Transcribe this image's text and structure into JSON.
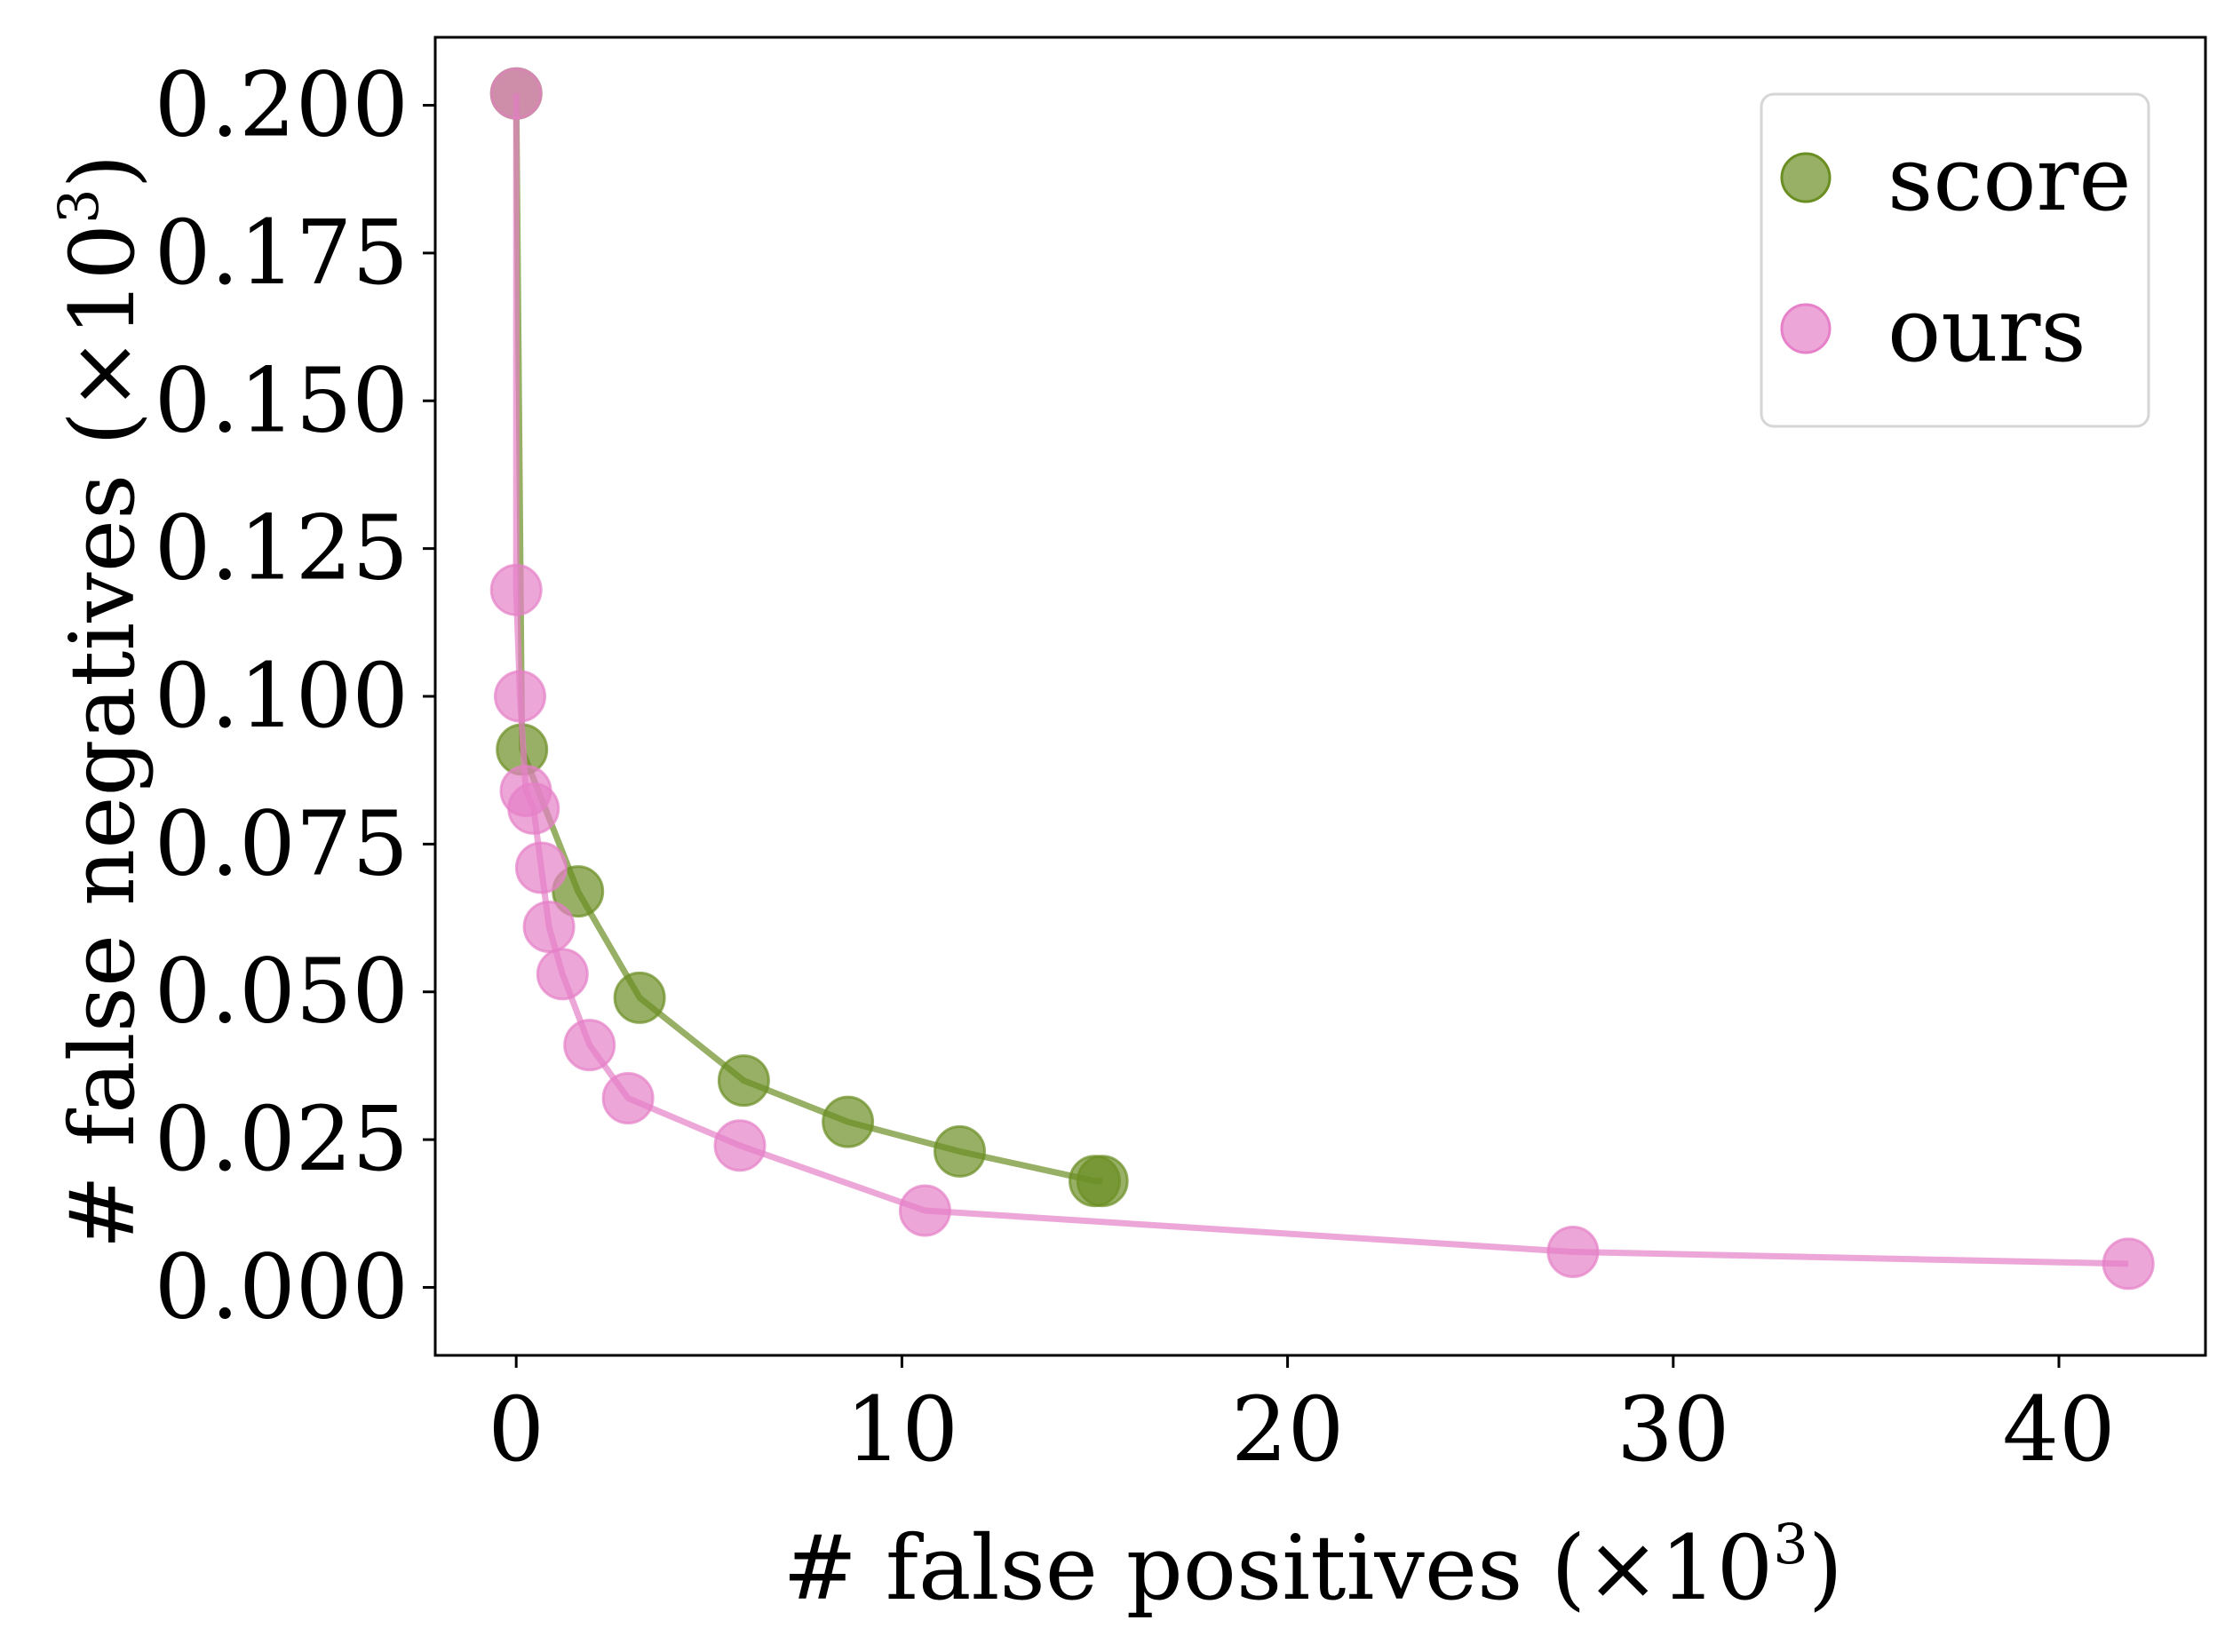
{
  "chart_data": {
    "type": "line",
    "title": "",
    "xlabel": {
      "text": "# false positives (×10",
      "sup": "3",
      "close": ")"
    },
    "ylabel": {
      "text": "# false negatives (×10",
      "sup": "3",
      "close": ")"
    },
    "xlim": [
      -2.1,
      43.8
    ],
    "ylim": [
      -0.0115,
      0.2115
    ],
    "xticks": [
      0,
      10,
      20,
      30,
      40
    ],
    "xtick_labels": [
      "0",
      "10",
      "20",
      "30",
      "40"
    ],
    "yticks": [
      0.0,
      0.025,
      0.05,
      0.075,
      0.1,
      0.125,
      0.15,
      0.175,
      0.2
    ],
    "ytick_labels": [
      "0.000",
      "0.025",
      "0.050",
      "0.075",
      "0.100",
      "0.125",
      "0.150",
      "0.175",
      "0.200"
    ],
    "grid": false,
    "legend_position": "top-right",
    "series": [
      {
        "name": "score",
        "color": "#6b8e23",
        "x": [
          0.0,
          0.15,
          1.6,
          3.2,
          5.9,
          8.6,
          11.5,
          15.0,
          15.2
        ],
        "y": [
          0.202,
          0.091,
          0.067,
          0.049,
          0.035,
          0.028,
          0.023,
          0.018,
          0.018
        ]
      },
      {
        "name": "ours",
        "color": "#e680c8",
        "x": [
          0.0,
          0.0,
          0.1,
          0.25,
          0.45,
          0.65,
          0.85,
          1.2,
          1.9,
          2.9,
          5.8,
          10.6,
          27.4,
          41.8
        ],
        "y": [
          0.202,
          0.118,
          0.1,
          0.084,
          0.081,
          0.071,
          0.061,
          0.053,
          0.041,
          0.032,
          0.024,
          0.013,
          0.006,
          0.004
        ]
      }
    ]
  }
}
